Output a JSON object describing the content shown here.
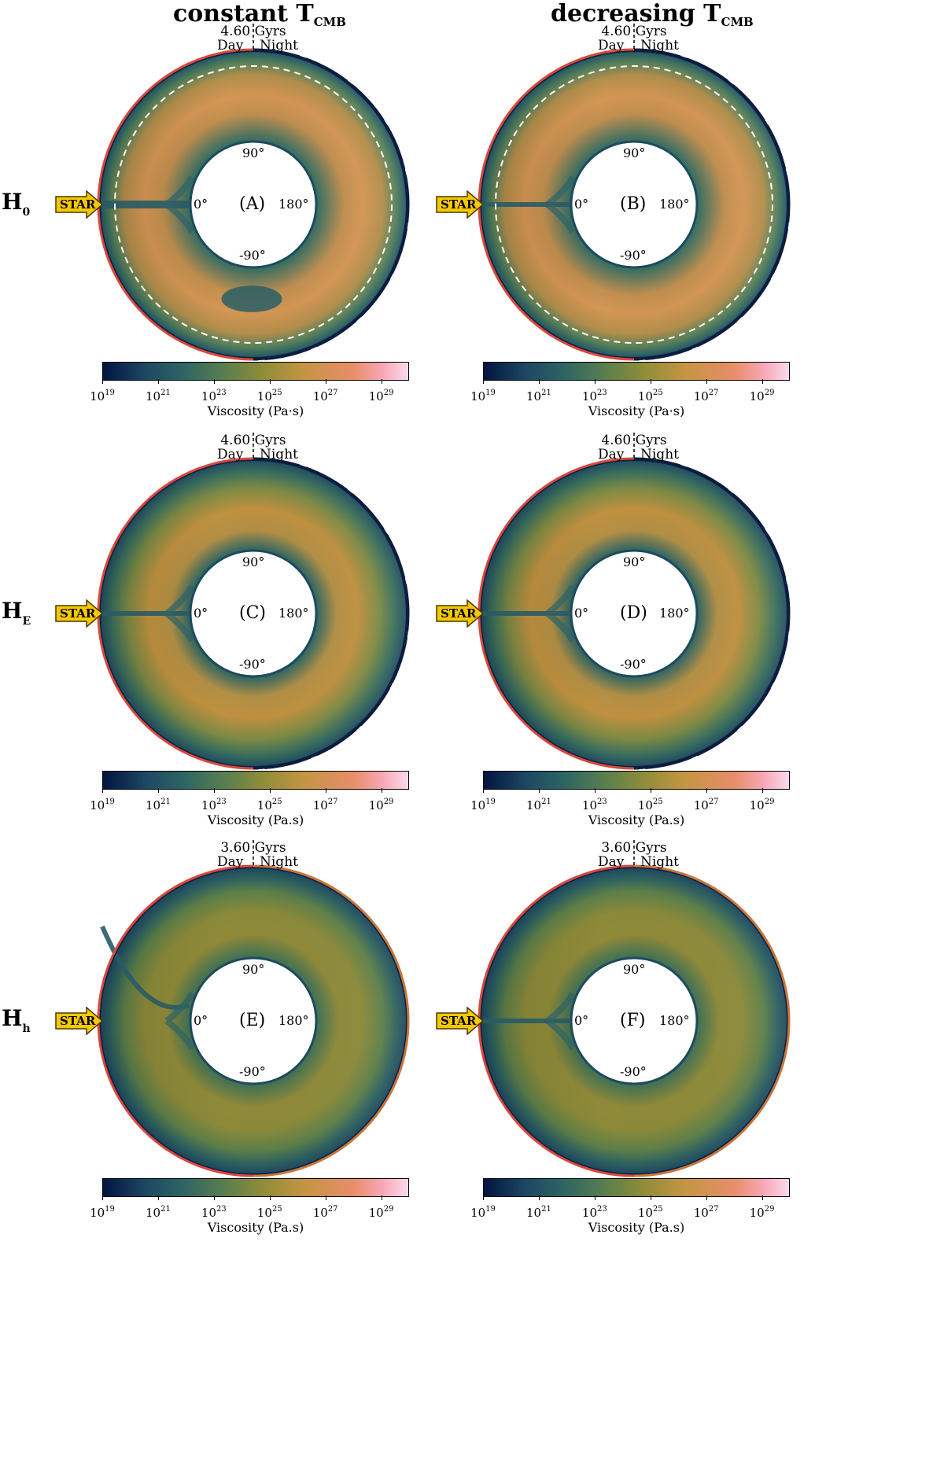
{
  "columns": [
    {
      "main": "constant T",
      "sub": "CMB"
    },
    {
      "main": "decreasing T",
      "sub": "CMB"
    }
  ],
  "rows": [
    {
      "main": "H",
      "sub": "0"
    },
    {
      "main": "H",
      "sub": "E"
    },
    {
      "main": "H",
      "sub": "h"
    }
  ],
  "star_label": "STAR",
  "day_label": "Day",
  "night_label": "Night",
  "angles": {
    "top": "90°",
    "left": "0°",
    "right": "180°",
    "bottom": "-90°"
  },
  "panels": [
    {
      "letter": "(A)",
      "time": "4.60 Gyrs",
      "colorbar_label": "Viscosity (Pa·s)"
    },
    {
      "letter": "(B)",
      "time": "4.60 Gyrs",
      "colorbar_label": "Viscosity (Pa·s)"
    },
    {
      "letter": "(C)",
      "time": "4.60 Gyrs",
      "colorbar_label": "Viscosity (Pa.s)"
    },
    {
      "letter": "(D)",
      "time": "4.60 Gyrs",
      "colorbar_label": "Viscosity (Pa.s)"
    },
    {
      "letter": "(E)",
      "time": "3.60 Gyrs",
      "colorbar_label": "Viscosity (Pa.s)"
    },
    {
      "letter": "(F)",
      "time": "3.60 Gyrs",
      "colorbar_label": "Viscosity (Pa.s)"
    }
  ],
  "colorbar": {
    "ticks": [
      {
        "base": "10",
        "exp": "19"
      },
      {
        "base": "10",
        "exp": "21"
      },
      {
        "base": "10",
        "exp": "23"
      },
      {
        "base": "10",
        "exp": "25"
      },
      {
        "base": "10",
        "exp": "27"
      },
      {
        "base": "10",
        "exp": "29"
      }
    ],
    "colors": [
      "#021440",
      "#1d4863",
      "#2d6464",
      "#5a7f4d",
      "#8e8c39",
      "#c49543",
      "#e98d6a",
      "#f7a5b0",
      "#fbd9ee"
    ]
  }
}
